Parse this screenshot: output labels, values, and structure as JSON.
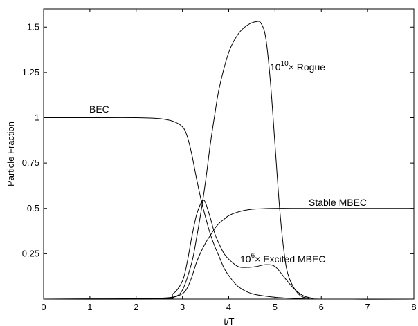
{
  "chart_data": {
    "type": "line",
    "title": "",
    "xlabel": "t/T",
    "ylabel": "Particle Fraction",
    "xlim": [
      0,
      8
    ],
    "ylim": [
      0,
      1.6
    ],
    "grid": false,
    "xticks": [
      0,
      1,
      2,
      3,
      4,
      5,
      6,
      7,
      8
    ],
    "xtick_labels": [
      "0",
      "1",
      "2",
      "3",
      "4",
      "5",
      "6",
      "7",
      "8"
    ],
    "yticks": [
      0.25,
      0.5,
      0.75,
      1,
      1.25,
      1.5
    ],
    "ytick_labels": [
      "0.25",
      "0.5",
      "0.75",
      "1",
      "1.25",
      "1.5"
    ],
    "series": [
      {
        "name": "BEC",
        "x": [
          0,
          1,
          2,
          2.5,
          2.8,
          3.0,
          3.1,
          3.2,
          3.3,
          3.4,
          3.5,
          3.6,
          3.7,
          3.8,
          3.9,
          4.0,
          4.2,
          4.5,
          5.0,
          5.5,
          6.0,
          8.0
        ],
        "y": [
          1.0,
          1.0,
          1.0,
          0.995,
          0.98,
          0.95,
          0.9,
          0.8,
          0.67,
          0.55,
          0.45,
          0.36,
          0.29,
          0.23,
          0.17,
          0.13,
          0.07,
          0.03,
          0.01,
          0.003,
          0.0,
          0.0
        ]
      },
      {
        "name": "Stable MBEC",
        "x": [
          0,
          2.5,
          2.8,
          3.0,
          3.1,
          3.2,
          3.3,
          3.4,
          3.5,
          3.6,
          3.7,
          3.8,
          3.9,
          4.0,
          4.2,
          4.5,
          5.0,
          5.5,
          6.0,
          8.0
        ],
        "y": [
          0.0,
          0.003,
          0.01,
          0.03,
          0.06,
          0.12,
          0.2,
          0.26,
          0.31,
          0.35,
          0.39,
          0.42,
          0.44,
          0.46,
          0.48,
          0.495,
          0.5,
          0.5,
          0.5,
          0.5
        ]
      },
      {
        "name": "10^6 × Excited MBEC",
        "x": [
          0,
          2.5,
          2.8,
          3.0,
          3.1,
          3.2,
          3.3,
          3.4,
          3.45,
          3.5,
          3.6,
          3.7,
          3.8,
          3.9,
          4.0,
          4.2,
          4.4,
          4.6,
          4.8,
          5.0,
          5.2,
          5.4,
          5.6,
          5.8,
          6.0,
          8.0
        ],
        "y": [
          0.0,
          0.005,
          0.03,
          0.1,
          0.2,
          0.34,
          0.46,
          0.53,
          0.545,
          0.53,
          0.45,
          0.36,
          0.3,
          0.25,
          0.22,
          0.18,
          0.175,
          0.18,
          0.19,
          0.18,
          0.12,
          0.06,
          0.02,
          0.005,
          0.0,
          0.0
        ]
      },
      {
        "name": "10^10 × Rogue",
        "x": [
          0,
          2.5,
          2.8,
          3.0,
          3.2,
          3.3,
          3.4,
          3.5,
          3.6,
          3.7,
          3.8,
          4.0,
          4.2,
          4.4,
          4.6,
          4.7,
          4.8,
          4.9,
          5.0,
          5.1,
          5.2,
          5.3,
          5.5,
          5.7,
          6.0,
          8.0
        ],
        "y": [
          0.0,
          0.0,
          0.01,
          0.05,
          0.2,
          0.33,
          0.48,
          0.65,
          0.85,
          1.02,
          1.17,
          1.36,
          1.46,
          1.51,
          1.53,
          1.52,
          1.44,
          1.2,
          0.85,
          0.5,
          0.25,
          0.12,
          0.03,
          0.005,
          0.0,
          0.0
        ]
      }
    ],
    "annotations": [
      {
        "text": "BEC",
        "series": "BEC"
      },
      {
        "text": "Stable MBEC",
        "series": "Stable MBEC"
      },
      {
        "base": "10",
        "exp": "6",
        "rest": "× Excited MBEC",
        "series": "10^6 × Excited MBEC"
      },
      {
        "base": "10",
        "exp": "10",
        "rest": "× Rogue",
        "series": "10^10 × Rogue"
      }
    ]
  }
}
